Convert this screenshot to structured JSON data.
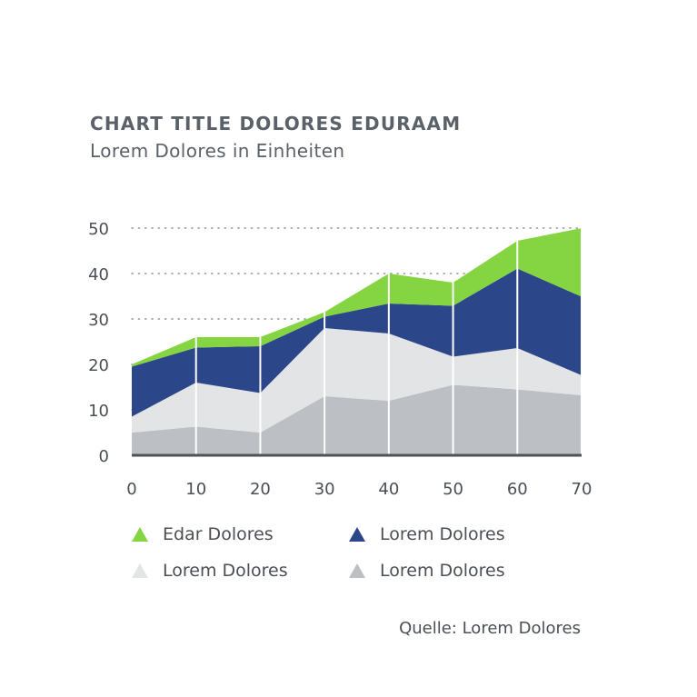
{
  "title": "CHART TITLE DOLORES EDURAAM",
  "subtitle": "Lorem Dolores in Einheiten",
  "source": "Quelle: Lorem Dolores",
  "chart_data": {
    "type": "area",
    "stacked": true,
    "x": [
      0,
      10,
      20,
      30,
      40,
      50,
      60,
      70
    ],
    "xlim": [
      0,
      70
    ],
    "ylim": [
      0,
      50
    ],
    "x_ticks": [
      "0",
      "10",
      "20",
      "30",
      "40",
      "50",
      "60",
      "70"
    ],
    "y_ticks": [
      "0",
      "10",
      "20",
      "30",
      "40",
      "50"
    ],
    "grid": "horizontal dotted, with vertical white separators at each x tick",
    "legend_position": "bottom",
    "series": [
      {
        "name": "Lorem Dolores",
        "color": "#bcc0c5",
        "values": [
          5,
          6.3,
          5,
          13,
          12,
          15.5,
          14.5,
          13.2
        ]
      },
      {
        "name": "Lorem Dolores",
        "color": "#e3e4e5",
        "values": [
          3.5,
          9.7,
          8.7,
          15,
          14.8,
          6.2,
          9.1,
          4.4
        ]
      },
      {
        "name": "Lorem Dolores",
        "color": "#2c468a",
        "values": [
          11,
          7.7,
          10.3,
          2.5,
          6.6,
          11.2,
          17.5,
          17.3
        ]
      },
      {
        "name": "Edar Dolores",
        "color": "#84d541",
        "values": [
          0.5,
          2.3,
          2,
          1,
          6.6,
          5.1,
          6.1,
          15.1
        ]
      }
    ],
    "legend": [
      {
        "label": "Edar Dolores",
        "color": "#84d541"
      },
      {
        "label": "Lorem Dolores",
        "color": "#2c468a"
      },
      {
        "label": "Lorem Dolores",
        "color": "#e3e4e5"
      },
      {
        "label": "Lorem Dolores",
        "color": "#bcc0c5"
      }
    ]
  }
}
